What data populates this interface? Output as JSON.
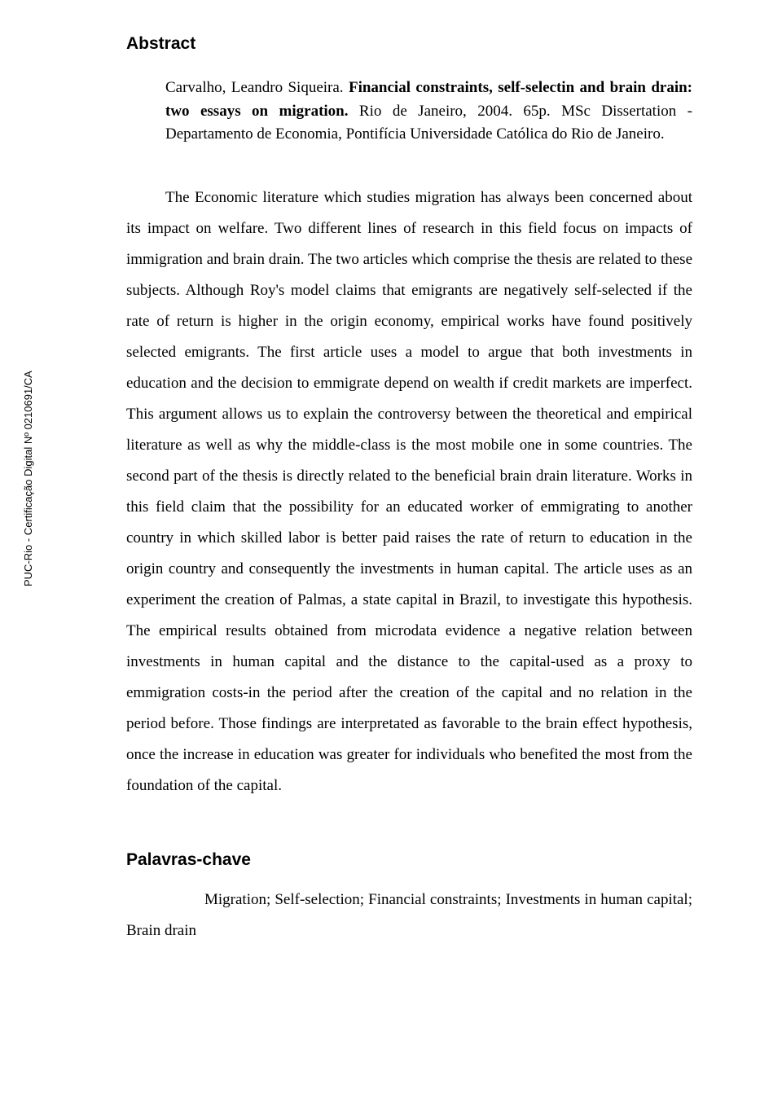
{
  "sideLabel": "PUC-Rio - Certificação Digital Nº 0210691/CA",
  "abstract": {
    "heading": "Abstract",
    "citation": {
      "author": "Carvalho, Leandro Siqueira. ",
      "title": "Financial constraints, self-selectin and brain drain: two essays on migration.",
      "rest": " Rio de Janeiro, 2004. 65p. MSc Dissertation - Departamento de Economia, Pontifícia Universidade Católica do Rio de Janeiro."
    },
    "body": "The Economic literature which studies migration has always been concerned about its impact on welfare. Two different lines of research in this field focus on impacts of immigration and brain drain. The two articles which comprise the thesis are related to these subjects. Although Roy's model claims that emigrants are negatively self-selected if the rate of return is higher in the origin economy, empirical works have found positively selected emigrants. The first article uses a model to argue that both investments in education and the decision to emmigrate depend on wealth if credit markets are imperfect. This argument allows us to explain the controversy between the theoretical and empirical literature as well as why the middle-class is the most mobile one in some countries. The second part of the thesis is directly related to the beneficial brain drain literature. Works in this field claim that the possibility for an educated worker of emmigrating to another country in which skilled labor is better paid raises the rate of return to education in the origin country and consequently the investments in human capital. The article uses as an experiment the creation of Palmas, a state capital in Brazil, to investigate this hypothesis. The empirical results obtained from microdata evidence a negative relation between investments in human capital and the distance to the capital-used as a proxy to emmigration costs-in the period after the creation of the capital and no relation in the period before. Those findings are interpretated as favorable to the brain effect hypothesis, once the increase in education was greater for individuals who benefited the most from the foundation of the capital."
  },
  "keywords": {
    "heading": "Palavras-chave",
    "text": "Migration; Self-selection; Financial constraints; Investments in human capital; Brain drain"
  }
}
